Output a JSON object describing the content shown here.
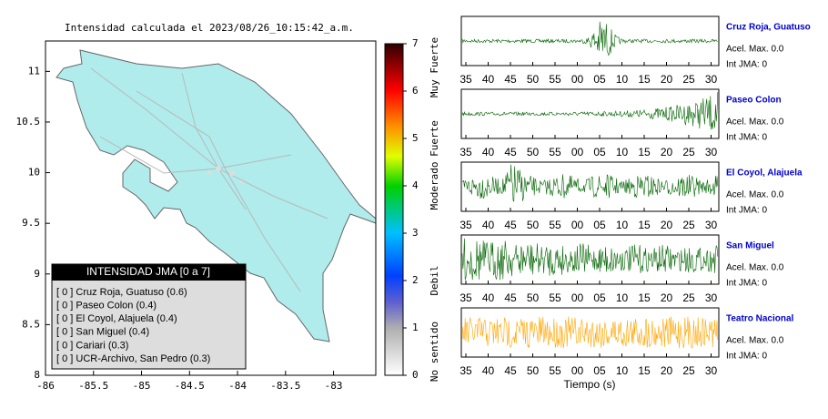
{
  "map": {
    "title": "Intensidad calculada el 2023/08/26_10:15:42_a.m.",
    "xlim": [
      -86,
      -82.56
    ],
    "ylim": [
      8,
      11.3
    ],
    "xticks": [
      -86,
      -85.5,
      -85,
      -84.5,
      -84,
      -83.5,
      -83
    ],
    "yticks": [
      8,
      8.5,
      9,
      9.5,
      10,
      10.5,
      11
    ],
    "land_color": "#b0ecec",
    "legend": {
      "title": "INTENSIDAD JMA [0 a 7]",
      "entries": [
        "[ 0 ]  Cruz Roja, Guatuso (0.6)",
        "[ 0 ]  Paseo Colon (0.4)",
        "[ 0 ]  El Coyol, Alajuela (0.4)",
        "[ 0 ]  San Miguel (0.4)",
        "[ 0 ]  Cariari (0.3)",
        "[ 0 ]  UCR-Archivo, San Pedro (0.3)"
      ]
    }
  },
  "colorbar": {
    "lim": [
      0,
      7
    ],
    "ticks": [
      0,
      1,
      2,
      3,
      4,
      5,
      6,
      7
    ],
    "labels": [
      {
        "text": "No sentido",
        "value": 0.5
      },
      {
        "text": "Debil",
        "value": 2
      },
      {
        "text": "Moderado",
        "value": 4
      },
      {
        "text": "Fuerte",
        "value": 5
      },
      {
        "text": "Muy Fuerte",
        "value": 6.5
      }
    ]
  },
  "waveforms": {
    "xlabel": "Tiempo (s)",
    "xticks": [
      "35",
      "40",
      "45",
      "50",
      "55",
      "00",
      "05",
      "10",
      "15",
      "20",
      "25",
      "30"
    ],
    "stations": [
      {
        "name": "Cruz Roja, Guatuso",
        "acel": "Acel. Max. 0.0",
        "int": "Int JMA: 0",
        "color": "#006400"
      },
      {
        "name": "Paseo Colon",
        "acel": "Acel. Max. 0.0",
        "int": "Int JMA: 0",
        "color": "#006400"
      },
      {
        "name": "El Coyol, Alajuela",
        "acel": "Acel. Max. 0.0",
        "int": "Int JMA: 0",
        "color": "#006400"
      },
      {
        "name": "San Miguel",
        "acel": "Acel. Max. 0.0",
        "int": "Int JMA: 0",
        "color": "#006400"
      },
      {
        "name": "Teatro Nacional",
        "acel": "Acel. Max. 0.0",
        "int": "Int JMA: 0",
        "color": "#ffa500"
      }
    ]
  }
}
